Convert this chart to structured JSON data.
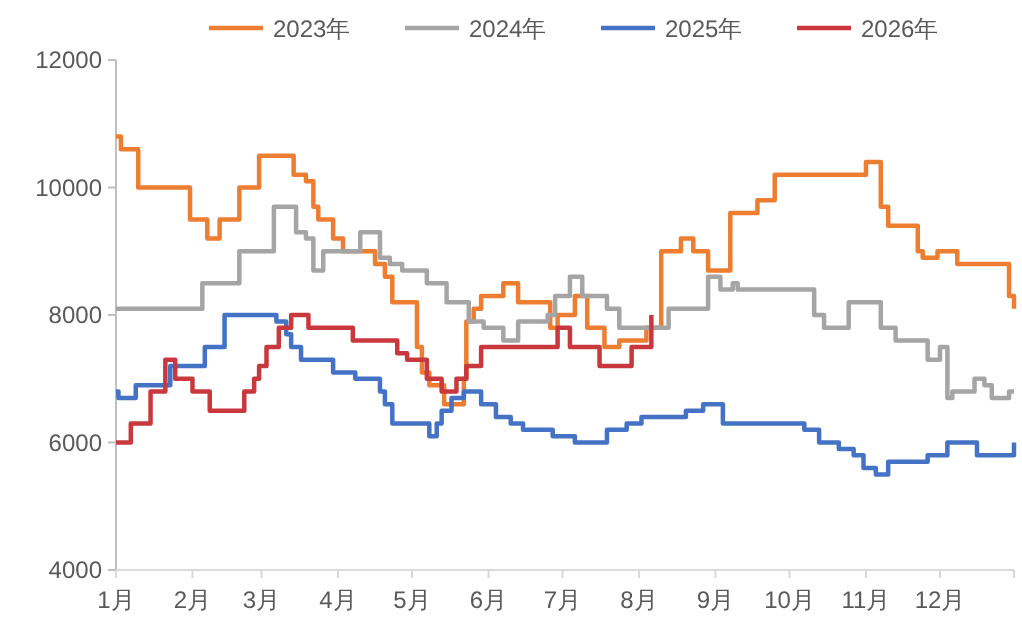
{
  "chart_data": {
    "type": "step",
    "xlim": [
      "--01-01",
      "--12-31"
    ],
    "xticks": [
      {
        "value": "--01-01",
        "label": "1月"
      },
      {
        "value": "--02-01",
        "label": "2月"
      },
      {
        "value": "--03-01",
        "label": "3月"
      },
      {
        "value": "--04-01",
        "label": "4月"
      },
      {
        "value": "--05-01",
        "label": "5月"
      },
      {
        "value": "--06-01",
        "label": "6月"
      },
      {
        "value": "--07-01",
        "label": "7月"
      },
      {
        "value": "--08-01",
        "label": "8月"
      },
      {
        "value": "--09-01",
        "label": "9月"
      },
      {
        "value": "--10-01",
        "label": "10月"
      },
      {
        "value": "--11-01",
        "label": "11月"
      },
      {
        "value": "--12-01",
        "label": "12月"
      }
    ],
    "ylim": [
      4000,
      12000
    ],
    "yticks": [
      4000,
      6000,
      8000,
      10000,
      12000
    ],
    "legend": "top",
    "series": [
      {
        "name": "2023年",
        "color": "#ed7d31",
        "x": [
          "--01-01",
          "--01-03",
          "--01-10",
          "--01-31",
          "--02-07",
          "--02-12",
          "--02-20",
          "--02-28",
          "--03-14",
          "--03-19",
          "--03-22",
          "--03-24",
          "--03-30",
          "--04-03",
          "--04-16",
          "--04-20",
          "--04-23",
          "--05-03",
          "--05-05",
          "--05-08",
          "--05-14",
          "--05-22",
          "--05-23",
          "--05-26",
          "--05-29",
          "--06-07",
          "--06-13",
          "--06-26",
          "--06-29",
          "--07-06",
          "--07-11",
          "--07-18",
          "--07-24",
          "--08-04",
          "--08-10",
          "--08-18",
          "--08-23",
          "--08-29",
          "--09-07",
          "--09-18",
          "--09-25",
          "--11-01",
          "--11-07",
          "--11-10",
          "--11-22",
          "--11-24",
          "--11-30",
          "--12-08",
          "--12-29",
          "--12-31"
        ],
        "values": [
          10800,
          10600,
          10000,
          9500,
          9200,
          9500,
          10000,
          10500,
          10200,
          10100,
          9700,
          9500,
          9200,
          9000,
          8800,
          8600,
          8200,
          7500,
          7100,
          6900,
          6600,
          7000,
          7900,
          8100,
          8300,
          8500,
          8200,
          7800,
          8000,
          8300,
          7800,
          7500,
          7600,
          7800,
          9000,
          9200,
          9000,
          8700,
          9600,
          9800,
          10200,
          10400,
          9700,
          9400,
          9000,
          8900,
          9000,
          8800,
          8300,
          8100
        ]
      },
      {
        "name": "2024年",
        "color": "#a5a5a5",
        "x": [
          "--01-01",
          "--02-05",
          "--02-20",
          "--03-06",
          "--03-15",
          "--03-19",
          "--03-22",
          "--03-26",
          "--04-10",
          "--04-18",
          "--04-22",
          "--04-27",
          "--05-07",
          "--05-15",
          "--05-24",
          "--05-30",
          "--06-07",
          "--06-13",
          "--06-25",
          "--06-28",
          "--07-04",
          "--07-09",
          "--07-19",
          "--07-24",
          "--08-13",
          "--08-29",
          "--09-03",
          "--09-08",
          "--09-10",
          "--10-11",
          "--10-15",
          "--10-25",
          "--11-07",
          "--11-13",
          "--11-26",
          "--12-01",
          "--12-04",
          "--12-06",
          "--12-15",
          "--12-19",
          "--12-22",
          "--12-29",
          "--12-31"
        ],
        "values": [
          8100,
          8500,
          9000,
          9700,
          9300,
          9200,
          8700,
          9000,
          9300,
          8900,
          8800,
          8700,
          8500,
          8200,
          7900,
          7800,
          7600,
          7900,
          8000,
          8300,
          8600,
          8300,
          8100,
          7800,
          8100,
          8600,
          8400,
          8500,
          8400,
          8000,
          7800,
          8200,
          7800,
          7600,
          7300,
          7500,
          6700,
          6800,
          7000,
          6900,
          6700,
          6800,
          6800
        ]
      },
      {
        "name": "2025年",
        "color": "#4472c4",
        "x": [
          "--01-01",
          "--01-02",
          "--01-09",
          "--01-23",
          "--02-06",
          "--02-14",
          "--03-07",
          "--03-11",
          "--03-13",
          "--03-17",
          "--03-30",
          "--04-08",
          "--04-18",
          "--04-20",
          "--04-23",
          "--05-08",
          "--05-11",
          "--05-13",
          "--05-17",
          "--05-22",
          "--05-29",
          "--06-04",
          "--06-10",
          "--06-15",
          "--06-27",
          "--07-06",
          "--07-19",
          "--07-27",
          "--08-02",
          "--08-20",
          "--08-27",
          "--09-04",
          "--10-07",
          "--10-13",
          "--10-21",
          "--10-27",
          "--10-31",
          "--11-05",
          "--11-10",
          "--11-26",
          "--12-04",
          "--12-16",
          "--12-31"
        ],
        "values": [
          6800,
          6700,
          6900,
          7200,
          7500,
          8000,
          7900,
          7700,
          7500,
          7300,
          7100,
          7000,
          6800,
          6600,
          6300,
          6100,
          6300,
          6500,
          6700,
          6800,
          6600,
          6400,
          6300,
          6200,
          6100,
          6000,
          6200,
          6300,
          6400,
          6500,
          6600,
          6300,
          6200,
          6000,
          5900,
          5800,
          5600,
          5500,
          5700,
          5800,
          6000,
          5800,
          6000
        ]
      },
      {
        "name": "2026年",
        "color": "#c8383c",
        "x": [
          "--01-01",
          "--01-07",
          "--01-15",
          "--01-21",
          "--01-25",
          "--02-01",
          "--02-08",
          "--02-22",
          "--02-26",
          "--02-28",
          "--03-03",
          "--03-08",
          "--03-13",
          "--03-20",
          "--04-07",
          "--04-25",
          "--04-29",
          "--05-07",
          "--05-13",
          "--05-19",
          "--05-23",
          "--05-29",
          "--06-29",
          "--07-04",
          "--07-16",
          "--07-29",
          "--08-06"
        ],
        "values": [
          6000,
          6300,
          6800,
          7300,
          7000,
          6800,
          6500,
          6800,
          7000,
          7200,
          7500,
          7800,
          8000,
          7800,
          7600,
          7400,
          7300,
          7000,
          6800,
          7000,
          7200,
          7500,
          7800,
          7500,
          7200,
          7500,
          8000
        ]
      }
    ]
  }
}
